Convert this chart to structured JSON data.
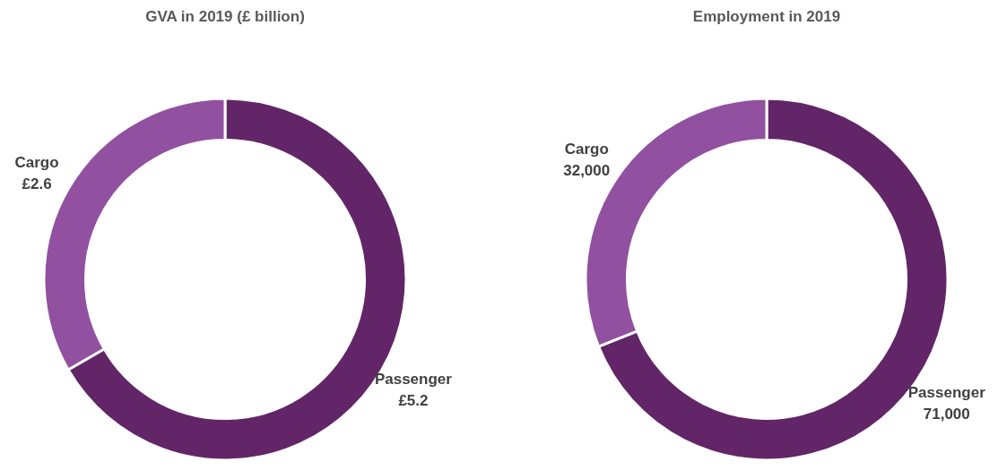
{
  "chart_data": [
    {
      "type": "donut",
      "title": "GVA in 2019 (£ billion)",
      "categories": [
        "Passenger",
        "Cargo"
      ],
      "values": [
        5.2,
        2.6
      ],
      "value_labels": [
        "£5.2",
        "£2.6"
      ],
      "colors": [
        "#622567",
        "#9150a0"
      ]
    },
    {
      "type": "donut",
      "title": "Employment in 2019",
      "categories": [
        "Passenger",
        "Cargo"
      ],
      "values": [
        71000,
        32000
      ],
      "value_labels": [
        "71,000",
        "32,000"
      ],
      "colors": [
        "#622567",
        "#9150a0"
      ]
    }
  ]
}
